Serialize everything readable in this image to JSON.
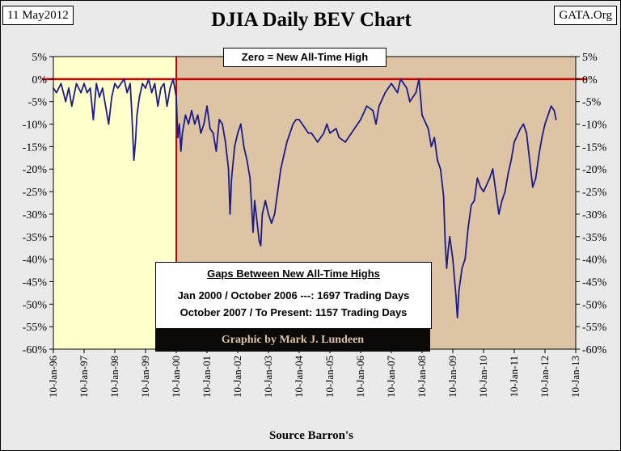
{
  "header": {
    "date": "11 May2012",
    "site": "GATA.Org",
    "title": "DJIA Daily BEV Chart",
    "source": "Source Barron's"
  },
  "colors": {
    "pre2000_fill": "#ffffcc",
    "post2000_fill": "#dcc4a4",
    "line": "#1b1b8a",
    "zero_line": "#cc0000"
  },
  "annotations": {
    "zero_label": "Zero = New All-Time High",
    "gaps_title": "Gaps Between New All-Time Highs",
    "gap_line1": "Jan 2000 / October 2006 ---: 1697  Trading Days",
    "gap_line2": "October 2007 / To Present: 1157 Trading Days",
    "credit": "Graphic by Mark J. Lundeen"
  },
  "chart_data": {
    "type": "line",
    "title": "DJIA Daily BEV Chart",
    "xlabel": "Source Barron's",
    "ylabel": "",
    "ylim": [
      -60,
      5
    ],
    "xlim": [
      1996.0,
      2013.0
    ],
    "y_ticks": [
      "5%",
      "0%",
      "-5%",
      "-10%",
      "-15%",
      "-20%",
      "-25%",
      "-30%",
      "-35%",
      "-40%",
      "-45%",
      "-50%",
      "-55%",
      "-60%"
    ],
    "x_ticks": [
      "10-Jan-96",
      "10-Jan-97",
      "10-Jan-98",
      "10-Jan-99",
      "10-Jan-00",
      "10-Jan-01",
      "10-Jan-02",
      "10-Jan-03",
      "10-Jan-04",
      "10-Jan-05",
      "10-Jan-06",
      "10-Jan-07",
      "10-Jan-08",
      "10-Jan-09",
      "10-Jan-10",
      "10-Jan-11",
      "10-Jan-12",
      "10-Jan-13"
    ],
    "regions": [
      {
        "name": "pre-2000",
        "from": 1996.0,
        "to": 2000.0
      },
      {
        "name": "post-2000",
        "from": 2000.0,
        "to": 2013.0
      }
    ],
    "series": [
      {
        "name": "DJIA BEV",
        "x": [
          1996.0,
          1996.1,
          1996.25,
          1996.4,
          1996.5,
          1996.6,
          1996.75,
          1996.9,
          1997.0,
          1997.1,
          1997.2,
          1997.3,
          1997.4,
          1997.5,
          1997.6,
          1997.7,
          1997.8,
          1997.9,
          1998.0,
          1998.1,
          1998.2,
          1998.3,
          1998.4,
          1998.5,
          1998.55,
          1998.62,
          1998.67,
          1998.72,
          1998.8,
          1998.9,
          1999.0,
          1999.1,
          1999.2,
          1999.3,
          1999.4,
          1999.5,
          1999.6,
          1999.7,
          1999.8,
          1999.9,
          2000.0,
          2000.05,
          2000.1,
          2000.15,
          2000.2,
          2000.3,
          2000.4,
          2000.5,
          2000.6,
          2000.7,
          2000.8,
          2000.9,
          2001.0,
          2001.1,
          2001.2,
          2001.3,
          2001.4,
          2001.5,
          2001.6,
          2001.7,
          2001.75,
          2001.8,
          2001.9,
          2002.0,
          2002.1,
          2002.2,
          2002.3,
          2002.4,
          2002.5,
          2002.55,
          2002.6,
          2002.7,
          2002.75,
          2002.8,
          2002.9,
          2003.0,
          2003.1,
          2003.2,
          2003.3,
          2003.4,
          2003.5,
          2003.6,
          2003.7,
          2003.8,
          2003.9,
          2004.0,
          2004.1,
          2004.2,
          2004.3,
          2004.4,
          2004.5,
          2004.6,
          2004.7,
          2004.8,
          2004.9,
          2005.0,
          2005.2,
          2005.3,
          2005.5,
          2005.7,
          2005.9,
          2006.0,
          2006.2,
          2006.4,
          2006.5,
          2006.6,
          2006.8,
          2006.9,
          2007.0,
          2007.2,
          2007.3,
          2007.5,
          2007.6,
          2007.8,
          2007.9,
          2008.0,
          2008.2,
          2008.3,
          2008.4,
          2008.5,
          2008.6,
          2008.7,
          2008.75,
          2008.8,
          2008.85,
          2008.9,
          2009.0,
          2009.1,
          2009.15,
          2009.2,
          2009.3,
          2009.4,
          2009.5,
          2009.6,
          2009.7,
          2009.8,
          2009.9,
          2010.0,
          2010.2,
          2010.3,
          2010.4,
          2010.5,
          2010.6,
          2010.7,
          2010.8,
          2010.9,
          2011.0,
          2011.2,
          2011.3,
          2011.4,
          2011.5,
          2011.55,
          2011.6,
          2011.7,
          2011.8,
          2011.9,
          2012.0,
          2012.1,
          2012.2,
          2012.3,
          2012.36
        ],
        "y": [
          -2,
          -3,
          -1,
          -5,
          -2,
          -6,
          -1,
          -3,
          -1,
          -3,
          -2,
          -9,
          -1,
          -4,
          -2,
          -6,
          -10,
          -4,
          -1,
          -2,
          -1,
          0,
          -3,
          -1,
          -7,
          -18,
          -14,
          -8,
          -4,
          -1,
          -2,
          0,
          -3,
          -1,
          -6,
          -2,
          -1,
          -6,
          -2,
          0,
          -4,
          -13,
          -10,
          -16,
          -12,
          -8,
          -10,
          -7,
          -10,
          -8,
          -12,
          -10,
          -6,
          -11,
          -12,
          -16,
          -9,
          -10,
          -14,
          -20,
          -30,
          -22,
          -15,
          -12,
          -10,
          -15,
          -18,
          -22,
          -34,
          -27,
          -30,
          -36,
          -37,
          -30,
          -27,
          -30,
          -32,
          -30,
          -25,
          -20,
          -17,
          -14,
          -12,
          -10,
          -9,
          -9,
          -10,
          -11,
          -12,
          -12,
          -13,
          -14,
          -13,
          -12,
          -10,
          -12,
          -11,
          -13,
          -14,
          -12,
          -10,
          -9,
          -6,
          -7,
          -10,
          -6,
          -3,
          -2,
          -1,
          -3,
          0,
          -2,
          -5,
          -3,
          0,
          -8,
          -11,
          -15,
          -13,
          -18,
          -20,
          -26,
          -36,
          -42,
          -38,
          -35,
          -40,
          -48,
          -53,
          -47,
          -42,
          -40,
          -33,
          -28,
          -27,
          -22,
          -24,
          -25,
          -22,
          -20,
          -25,
          -30,
          -27,
          -25,
          -21,
          -18,
          -14,
          -11,
          -10,
          -12,
          -18,
          -21,
          -24,
          -22,
          -17,
          -13,
          -10,
          -8,
          -6,
          -7,
          -9
        ]
      }
    ]
  }
}
